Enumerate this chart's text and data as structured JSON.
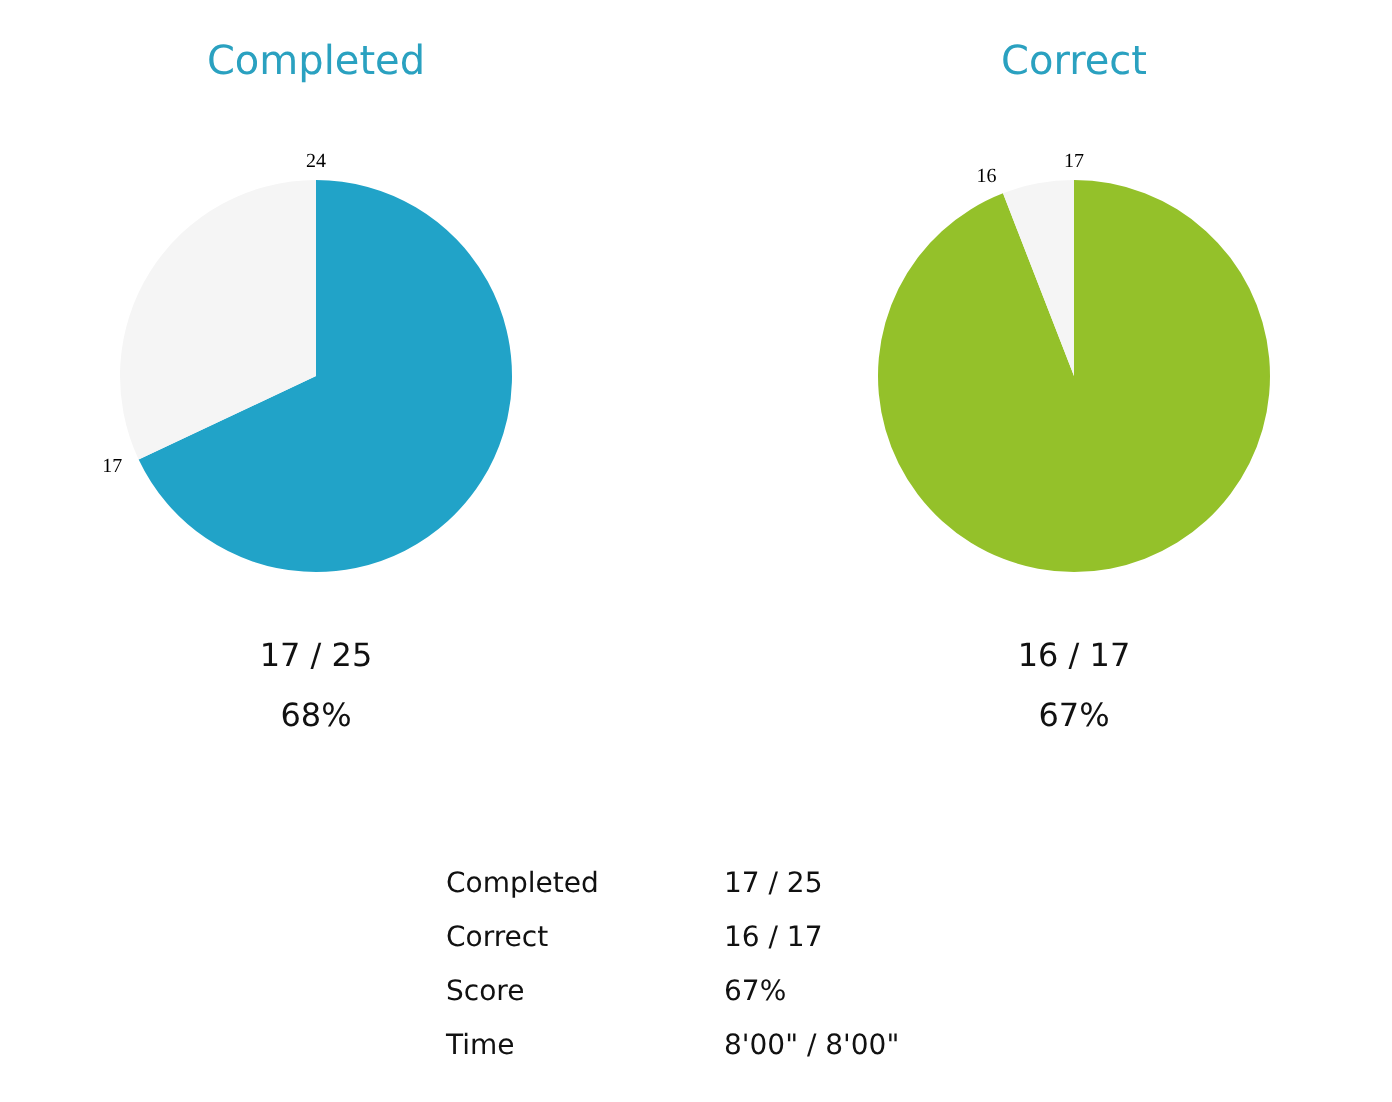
{
  "chart_data": [
    {
      "type": "pie",
      "title": "Completed",
      "categories": [
        null,
        null
      ],
      "values": [
        68,
        32
      ],
      "colors": [
        "#21a3c8",
        "#f5f5f5"
      ],
      "annotations": [
        "24",
        "17",
        "17 / 25",
        "68%"
      ]
    },
    {
      "type": "pie",
      "title": "Correct",
      "categories": [
        null,
        null
      ],
      "values": [
        94.1,
        5.9
      ],
      "colors": [
        "#94c12a",
        "#f5f5f5"
      ],
      "annotations": [
        "17",
        "16",
        "16 / 17",
        "67%"
      ]
    },
    {
      "type": "other",
      "annotations": [
        "Completed",
        "17 / 25",
        "Correct",
        "16 / 17",
        "Score",
        "67%",
        "Time",
        "8'00\" / 8'00\""
      ]
    }
  ]
}
